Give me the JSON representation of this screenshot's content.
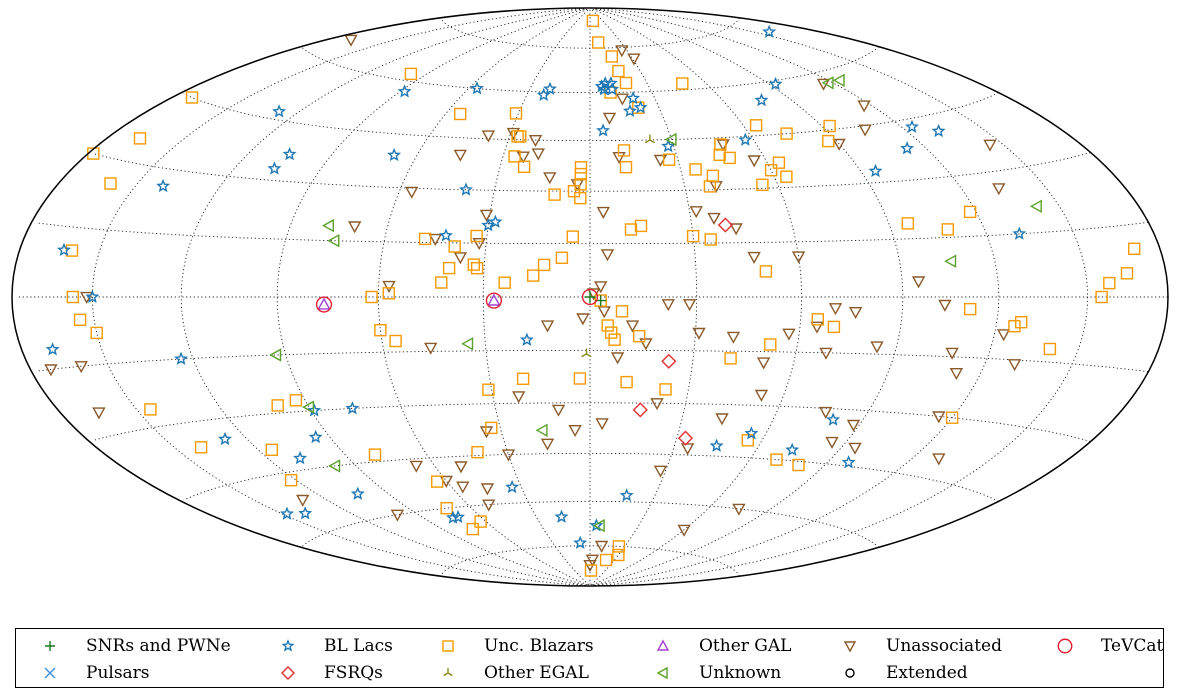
{
  "chart_data": {
    "type": "scatter",
    "projection": "hammer-aitoff",
    "coordinates": "galactic",
    "grid": true,
    "legend_position": "bottom",
    "title": "",
    "xlabel": "",
    "ylabel": "",
    "series": [
      {
        "name": "SNRs and PWNe",
        "marker": "plus",
        "color": "#1a7a1a",
        "points": [
          [
            0,
            0
          ],
          [
            -3,
            -1
          ]
        ]
      },
      {
        "name": "Pulsars",
        "marker": "x",
        "color": "#3b8fe0",
        "points": []
      },
      {
        "name": "BL Lacs",
        "marker": "star",
        "color": "#1f77b4",
        "points": [
          [
            -158,
            71
          ],
          [
            -93,
            59
          ],
          [
            -77,
            55
          ],
          [
            -57,
            44
          ],
          [
            -28,
            43
          ],
          [
            -11,
            61
          ],
          [
            -11,
            63
          ],
          [
            -8,
            63
          ],
          [
            -6,
            62
          ],
          [
            -20,
            58
          ],
          [
            -22,
            55
          ],
          [
            -17,
            54
          ],
          [
            -7,
            61
          ],
          [
            -5,
            48
          ],
          [
            22,
            59
          ],
          [
            20,
            61
          ],
          [
            56,
            60
          ],
          [
            88,
            57
          ],
          [
            68,
            39
          ],
          [
            105,
            37
          ],
          [
            106,
            33
          ],
          [
            128,
            47
          ],
          [
            -124,
            43
          ],
          [
            -132,
            41
          ],
          [
            -113,
            38
          ],
          [
            -95,
            33
          ],
          [
            -131,
            15
          ],
          [
            39,
            30
          ],
          [
            30,
            20
          ],
          [
            28,
            21
          ],
          [
            42,
            17
          ],
          [
            140,
            26
          ],
          [
            163,
            10
          ],
          [
            168,
            -11
          ],
          [
            124,
            -15
          ],
          [
            76,
            -30
          ],
          [
            89,
            -30
          ],
          [
            95,
            -37
          ],
          [
            108,
            -42
          ],
          [
            128,
            -35
          ],
          [
            140,
            -55
          ],
          [
            148,
            -54
          ],
          [
            103,
            -53
          ],
          [
            72,
            -63
          ],
          [
            75,
            -63
          ],
          [
            34,
            -55
          ],
          [
            8,
            -74
          ],
          [
            16,
            -65
          ],
          [
            -17,
            -58
          ],
          [
            -55,
            -38
          ],
          [
            -45,
            -42
          ],
          [
            -73,
            -42
          ],
          [
            -80,
            -33
          ],
          [
            -98,
            -44
          ],
          [
            -4,
            -68
          ],
          [
            150,
            0
          ],
          [
            18,
            -12
          ]
        ]
      },
      {
        "name": "FSRQs",
        "marker": "diamond",
        "color": "#e03030",
        "points": [
          [
            -40,
            20
          ],
          [
            -23,
            -18
          ],
          [
            -16,
            -32
          ],
          [
            -33,
            -40
          ]
        ]
      },
      {
        "name": "Other EGAL",
        "marker": "tri_up",
        "color": "#8a8a1a",
        "points": [
          [
            -22,
            45
          ],
          [
            1,
            -16
          ]
        ]
      },
      {
        "name": "Unc. Blazars",
        "marker": "square",
        "color": "#f59a00",
        "points": [
          [
            -155,
            0
          ],
          [
            -128,
            -6
          ],
          [
            -126,
            -7
          ],
          [
            -111,
            -3
          ],
          [
            -118,
            21
          ],
          [
            -108,
            17
          ],
          [
            -96,
            19
          ],
          [
            -87,
            42
          ],
          [
            -93,
            46
          ],
          [
            -74,
            45
          ],
          [
            -64,
            37
          ],
          [
            -64,
            33
          ],
          [
            -60,
            35
          ],
          [
            -55,
            31
          ],
          [
            -48,
            39
          ],
          [
            -47,
            43
          ],
          [
            -45,
            40
          ],
          [
            -40,
            34
          ],
          [
            -38,
            31
          ],
          [
            -35,
            36
          ],
          [
            -35,
            16
          ],
          [
            -50,
            7
          ],
          [
            -30,
            17
          ],
          [
            -27,
            39
          ],
          [
            -21,
            55
          ],
          [
            -19,
            63
          ],
          [
            -17,
            67
          ],
          [
            -16,
            72
          ],
          [
            -12,
            42
          ],
          [
            -12,
            37
          ],
          [
            -10,
            60
          ],
          [
            -8,
            77
          ],
          [
            -7,
            85
          ],
          [
            -12,
            19
          ],
          [
            3,
            37
          ],
          [
            3,
            35
          ],
          [
            3,
            32
          ],
          [
            3,
            28
          ],
          [
            5,
            30
          ],
          [
            11,
            29
          ],
          [
            26,
            46
          ],
          [
            26,
            40
          ],
          [
            27,
            46
          ],
          [
            22,
            37
          ],
          [
            31,
            53
          ],
          [
            54,
            52
          ],
          [
            98,
            62
          ],
          [
            8,
            11
          ],
          [
            13,
            9
          ],
          [
            16,
            6
          ],
          [
            24,
            4
          ],
          [
            32,
            8
          ],
          [
            33,
            9
          ],
          [
            33,
            17
          ],
          [
            39,
            14
          ],
          [
            48,
            16
          ],
          [
            40,
            8
          ],
          [
            42,
            4
          ],
          [
            57,
            1
          ],
          [
            62,
            0
          ],
          [
            60,
            -9
          ],
          [
            56,
            -12
          ],
          [
            -65,
            -6
          ],
          [
            -70,
            -8
          ],
          [
            -52,
            -13
          ],
          [
            -9,
            -4
          ],
          [
            -3,
            -1
          ],
          [
            -14,
            -11
          ],
          [
            -6,
            -10
          ],
          [
            -7,
            -12
          ],
          [
            -41,
            -17
          ],
          [
            -23,
            -26
          ],
          [
            -11,
            -24
          ],
          [
            3,
            -23
          ],
          [
            20,
            -23
          ],
          [
            31,
            -26
          ],
          [
            33,
            -37
          ],
          [
            41,
            -44
          ],
          [
            64,
            -52
          ],
          [
            63,
            -65
          ],
          [
            73,
            -67
          ],
          [
            72,
            -60
          ],
          [
            79,
            -43
          ],
          [
            93,
            -27
          ],
          [
            100,
            -28
          ],
          [
            115,
            -39
          ],
          [
            122,
            -47
          ],
          [
            140,
            -36
          ],
          [
            145,
            -26
          ],
          [
            150,
            -8
          ],
          [
            155,
            -5
          ],
          [
            157,
            0
          ],
          [
            160,
            10
          ],
          [
            160,
            25
          ],
          [
            167,
            35
          ],
          [
            172,
            45
          ],
          [
            178,
            30
          ],
          [
            -165,
            5
          ],
          [
            -158,
            3
          ],
          [
            -170,
            10
          ],
          [
            -140,
            -12
          ],
          [
            -120,
            -30
          ],
          [
            -65,
            48
          ],
          [
            -48,
            62
          ],
          [
            -15,
            20
          ],
          [
            5,
            17
          ],
          [
            -5,
            -8
          ],
          [
            -25,
            -75
          ],
          [
            -20,
            -80
          ],
          [
            -30,
            -78
          ],
          [
            -2,
            -84
          ],
          [
            -55,
            -40
          ],
          [
            -70,
            -45
          ],
          [
            -80,
            -46
          ]
        ]
      },
      {
        "name": "Other GAL",
        "marker": "tri_open",
        "color": "#a040d0",
        "points": [
          [
            27,
            -1
          ],
          [
            76,
            -2
          ]
        ]
      },
      {
        "name": "Unassociated",
        "marker": "tri_down",
        "color": "#8b5a2b",
        "points": [
          [
            -133,
            26
          ],
          [
            -145,
            36
          ],
          [
            -105,
            44
          ],
          [
            -117,
            50
          ],
          [
            -115,
            57
          ],
          [
            -90,
            41
          ],
          [
            -56,
            38
          ],
          [
            -48,
            43
          ],
          [
            -40,
            31
          ],
          [
            -37,
            22
          ],
          [
            -32,
            24
          ],
          [
            -43,
            19
          ],
          [
            -47,
            11
          ],
          [
            -60,
            11
          ],
          [
            -24,
            39
          ],
          [
            -31,
            71
          ],
          [
            -26,
            74
          ],
          [
            -15,
            58
          ],
          [
            -8,
            52
          ],
          [
            -10,
            40
          ],
          [
            -5,
            12
          ],
          [
            -4,
            24
          ],
          [
            -3,
            3
          ],
          [
            -1,
            1
          ],
          [
            4,
            32
          ],
          [
            13,
            34
          ],
          [
            20,
            45
          ],
          [
            18,
            41
          ],
          [
            23,
            40
          ],
          [
            31,
            23
          ],
          [
            29,
            47
          ],
          [
            38,
            46
          ],
          [
            45,
            40
          ],
          [
            56,
            29
          ],
          [
            32,
            15
          ],
          [
            37,
            11
          ],
          [
            45,
            16
          ],
          [
            70,
            19
          ],
          [
            57,
            3
          ],
          [
            -95,
            4
          ],
          [
            -103,
            -2
          ],
          [
            -76,
            -4
          ],
          [
            -70,
            -3
          ],
          [
            -65,
            -8
          ],
          [
            -108,
            -14
          ],
          [
            -123,
            -9
          ],
          [
            -112,
            -19
          ],
          [
            -84,
            -13
          ],
          [
            -69,
            -15
          ],
          [
            -57,
            -10
          ],
          [
            -51,
            -18
          ],
          [
            -41,
            -11
          ],
          [
            -31,
            -10
          ],
          [
            -28,
            -2
          ],
          [
            -22,
            -2
          ],
          [
            -16,
            -13
          ],
          [
            -12,
            -8
          ],
          [
            -8,
            -17
          ],
          [
            -4,
            -4
          ],
          [
            2,
            -6
          ],
          [
            12,
            -8
          ],
          [
            46,
            -14
          ],
          [
            22,
            -28
          ],
          [
            10,
            -32
          ],
          [
            -4,
            -36
          ],
          [
            -21,
            -30
          ],
          [
            -35,
            -43
          ],
          [
            -28,
            -50
          ],
          [
            -43,
            -34
          ],
          [
            -53,
            -27
          ],
          [
            -76,
            -31
          ],
          [
            -88,
            -34
          ],
          [
            -85,
            -39
          ],
          [
            -95,
            -40
          ],
          [
            -115,
            -30
          ],
          [
            -130,
            -16
          ],
          [
            -130,
            -40
          ],
          [
            -75,
            -60
          ],
          [
            -60,
            -68
          ],
          [
            -10,
            -75
          ],
          [
            0,
            -82
          ],
          [
            -3,
            -80
          ],
          [
            45,
            -55
          ],
          [
            50,
            -60
          ],
          [
            50,
            -48
          ],
          [
            55,
            -54
          ],
          [
            60,
            -52
          ],
          [
            67,
            -47
          ],
          [
            35,
            -38
          ],
          [
            30,
            -45
          ],
          [
            15,
            -42
          ],
          [
            5,
            -38
          ],
          [
            170,
            65
          ],
          [
            100,
            -60
          ],
          [
            152,
            0
          ],
          [
            160,
            -15
          ],
          [
            165,
            -25
          ],
          [
            172,
            -15
          ],
          [
            130,
            -52
          ]
        ]
      },
      {
        "name": "Unknown",
        "marker": "tri_left",
        "color": "#5aa02a",
        "points": [
          [
            -125,
            57
          ],
          [
            -118,
            57
          ],
          [
            -142,
            21
          ],
          [
            -106,
            9
          ],
          [
            35,
            -13
          ],
          [
            75,
            15
          ],
          [
            78,
            19
          ],
          [
            16,
            -38
          ],
          [
            90,
            -29
          ],
          [
            98,
            -45
          ],
          [
            -6,
            -68
          ],
          [
            -30,
            45
          ],
          [
            93,
            -15
          ]
        ]
      },
      {
        "name": "Extended",
        "marker": "circle",
        "color": "#000000",
        "points": []
      },
      {
        "name": "TeVCat",
        "marker": "circle_large",
        "color": "#e02030",
        "points": [
          [
            0,
            0
          ],
          [
            27,
            -1
          ],
          [
            76,
            -2
          ]
        ]
      }
    ]
  },
  "legend": {
    "labels": [
      "SNRs and PWNe",
      "Pulsars",
      "BL Lacs",
      "FSRQs",
      "Unc. Blazars",
      "Other EGAL",
      "Other GAL",
      "Unknown",
      "Unassociated",
      "Extended",
      "TeVCat"
    ]
  }
}
